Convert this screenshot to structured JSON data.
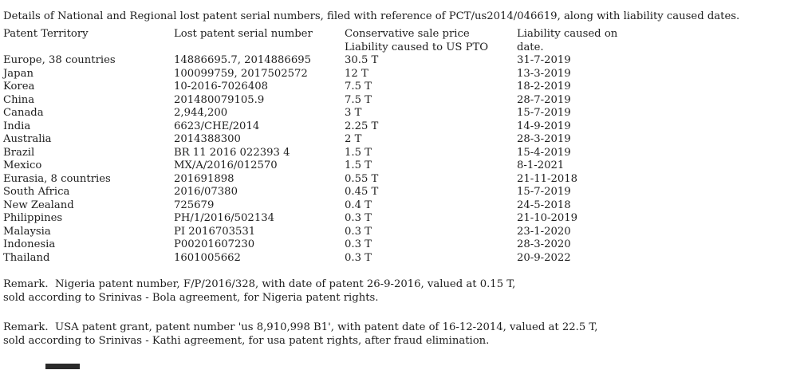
{
  "document": {
    "title": "Details of National and Regional lost patent serial numbers, filed with reference of PCT/us2014/046619, along with liability caused dates.",
    "background_color": "#ffffff",
    "text_color": "#1e1e1e",
    "table": {
      "header": {
        "col1_line1": "Patent Territory",
        "col2_line1": "Lost patent serial number",
        "col3_line1": "Conservative sale price",
        "col3_line2": "Liability caused to US PTO",
        "col4_line1": "Liability caused on",
        "col4_line2": "date."
      },
      "rows": [
        {
          "territory": "Europe, 38 countries",
          "serial": "14886695.7, 2014886695",
          "price": "30.5 T",
          "date": "31-7-2019"
        },
        {
          "territory": "Japan",
          "serial": "100099759, 2017502572",
          "price": "12 T",
          "date": "13-3-2019"
        },
        {
          "territory": "Korea",
          "serial": "10-2016-7026408",
          "price": "7.5 T",
          "date": "18-2-2019"
        },
        {
          "territory": "China",
          "serial": "201480079105.9",
          "price": "7.5 T",
          "date": "28-7-2019"
        },
        {
          "territory": "Canada",
          "serial": "2,944,200",
          "price": "3 T",
          "date": "15-7-2019"
        },
        {
          "territory": "India",
          "serial": "6623/CHE/2014",
          "price": "2.25 T",
          "date": "14-9-2019"
        },
        {
          "territory": "Australia",
          "serial": "2014388300",
          "price": "2 T",
          "date": "28-3-2019"
        },
        {
          "territory": "Brazil",
          "serial": "BR 11 2016 022393 4",
          "price": "1.5 T",
          "date": "15-4-2019"
        },
        {
          "territory": "Mexico",
          "serial": "MX/A/2016/012570",
          "price": "1.5 T",
          "date": "8-1-2021"
        },
        {
          "territory": "Eurasia, 8 countries",
          "serial": "201691898",
          "price": "0.55 T",
          "date": "21-11-2018"
        },
        {
          "territory": "South Africa",
          "serial": "2016/07380",
          "price": "0.45 T",
          "date": "15-7-2019"
        },
        {
          "territory": "New Zealand",
          "serial": "725679",
          "price": "0.4 T",
          "date": "24-5-2018"
        },
        {
          "territory": "Philippines",
          "serial": "PH/1/2016/502134",
          "price": "0.3 T",
          "date": "21-10-2019"
        },
        {
          "territory": "Malaysia",
          "serial": "PI 2016703531",
          "price": "0.3 T",
          "date": "23-1-2020"
        },
        {
          "territory": "Indonesia",
          "serial": "P00201607230",
          "price": "0.3 T",
          "date": "28-3-2020"
        },
        {
          "territory": "Thailand",
          "serial": "1601005662",
          "price": "0.3 T",
          "date": "20-9-2022"
        }
      ]
    },
    "remarks": [
      {
        "line1": "Remark.  Nigeria patent number, F/P/2016/328, with date of patent 26-9-2016, valued at 0.15 T,",
        "line2": "sold according to Srinivas - Bola agreement, for Nigeria patent rights."
      },
      {
        "line1": "Remark.  USA patent grant, patent number 'us 8,910,998 B1', with patent date of 16-12-2014, valued at 22.5 T,",
        "line2": "sold according to Srinivas - Kathi agreement, for usa patent rights, after fraud elimination."
      }
    ]
  }
}
